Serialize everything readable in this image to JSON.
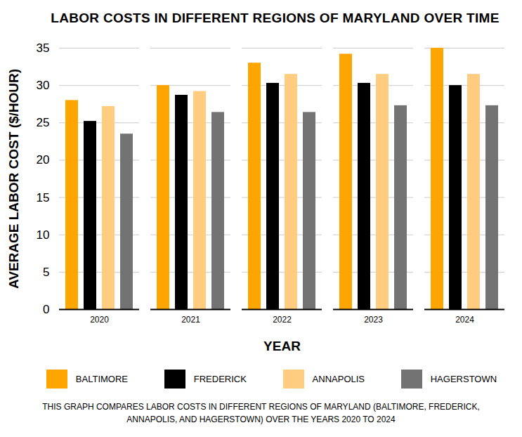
{
  "chart_data": {
    "type": "bar",
    "title": "LABOR COSTS IN DIFFERENT REGIONS OF MARYLAND OVER TIME",
    "x_label": "YEAR",
    "y_label": "AVERAGE LABOR COST ($/HOUR)",
    "caption": "THIS GRAPH COMPARES LABOR COSTS IN DIFFERENT REGIONS OF MARYLAND (BALTIMORE, FREDERICK, ANNAPOLIS, AND HAGERSTOWN) OVER THE YEARS 2020 TO 2024",
    "categories": [
      "2020",
      "2021",
      "2022",
      "2023",
      "2024"
    ],
    "series": [
      {
        "name": "BALTIMORE",
        "color": "#ffa500",
        "values": [
          28,
          30,
          33,
          34.2,
          35
        ]
      },
      {
        "name": "FREDERICK",
        "color": "#000000",
        "values": [
          25.2,
          28.7,
          30.3,
          30.3,
          30
        ]
      },
      {
        "name": "ANNAPOLIS",
        "color": "#ffcc80",
        "values": [
          27.2,
          29.2,
          31.5,
          31.5,
          31.5
        ]
      },
      {
        "name": "HAGERSTOWN",
        "color": "#737373",
        "values": [
          23.5,
          26.4,
          26.4,
          27.3,
          27.3
        ]
      }
    ],
    "ylim": [
      0,
      35
    ],
    "yticks": [
      0,
      5,
      10,
      15,
      20,
      25,
      30,
      35
    ],
    "grid": true,
    "legend": "bottom"
  }
}
